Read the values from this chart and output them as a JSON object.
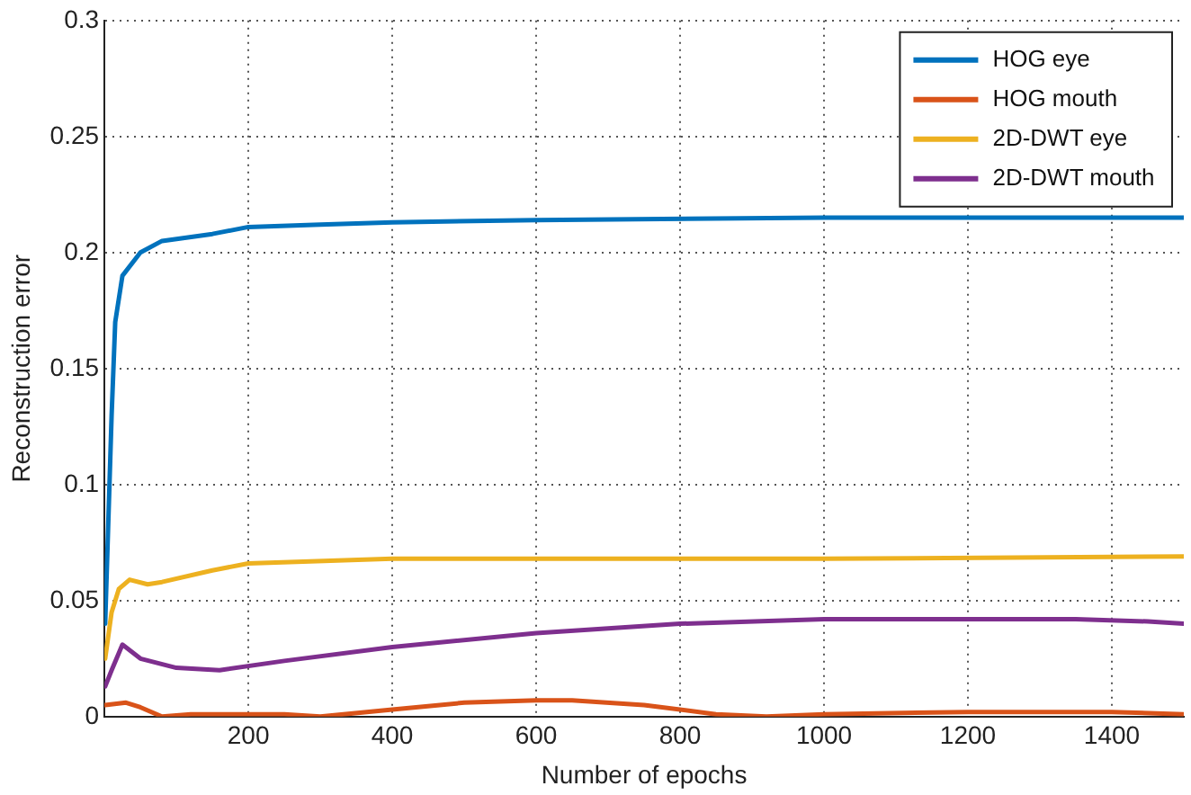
{
  "chart_data": {
    "type": "line",
    "xlabel": "Number of epochs",
    "ylabel": "Reconstruction error",
    "xlim": [
      0,
      1500
    ],
    "ylim": [
      0,
      0.3
    ],
    "xticks": [
      200,
      400,
      600,
      800,
      1000,
      1200,
      1400
    ],
    "yticks": [
      0,
      0.05,
      0.1,
      0.15,
      0.2,
      0.25,
      0.3
    ],
    "grid": true,
    "legend": "top right",
    "marker": "none",
    "line_style": "solid",
    "series": [
      {
        "name": "HOG eye",
        "color": "#0072bd",
        "x": [
          1,
          5,
          10,
          15,
          25,
          50,
          80,
          150,
          200,
          300,
          400,
          600,
          1000,
          1500
        ],
        "values": [
          0.04,
          0.08,
          0.13,
          0.17,
          0.19,
          0.2,
          0.205,
          0.208,
          0.211,
          0.212,
          0.213,
          0.214,
          0.215,
          0.215
        ]
      },
      {
        "name": "HOG mouth",
        "color": "#d95319",
        "x": [
          1,
          30,
          50,
          80,
          120,
          250,
          300,
          400,
          500,
          600,
          650,
          750,
          850,
          920,
          1000,
          1200,
          1400,
          1500
        ],
        "values": [
          0.005,
          0.006,
          0.004,
          0,
          0.001,
          0.001,
          0,
          0.003,
          0.006,
          0.007,
          0.007,
          0.005,
          0.001,
          0,
          0.001,
          0.002,
          0.002,
          0.001
        ]
      },
      {
        "name": "2D-DWT eye",
        "color": "#edb120",
        "x": [
          1,
          10,
          20,
          35,
          60,
          80,
          150,
          200,
          400,
          600,
          1000,
          1500
        ],
        "values": [
          0.025,
          0.045,
          0.055,
          0.059,
          0.057,
          0.058,
          0.063,
          0.066,
          0.068,
          0.068,
          0.068,
          0.069
        ]
      },
      {
        "name": "2D-DWT mouth",
        "color": "#7e2f8e",
        "x": [
          1,
          10,
          25,
          50,
          100,
          160,
          250,
          400,
          600,
          800,
          1000,
          1350,
          1450,
          1500
        ],
        "values": [
          0.013,
          0.02,
          0.031,
          0.025,
          0.021,
          0.02,
          0.024,
          0.03,
          0.036,
          0.04,
          0.042,
          0.042,
          0.041,
          0.04
        ]
      }
    ]
  }
}
